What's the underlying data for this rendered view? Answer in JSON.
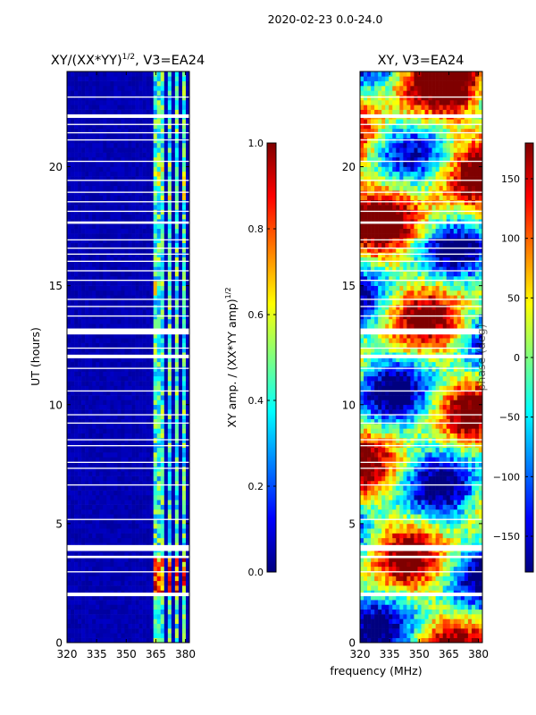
{
  "suptitle": "2020-02-23 0.0-24.0",
  "shared": {
    "xlabel": "frequency (MHz)"
  },
  "colors": {
    "jet": [
      "#00007f",
      "#0000ff",
      "#007fff",
      "#00ffff",
      "#7fff7f",
      "#ffff00",
      "#ff7f00",
      "#ff0000",
      "#7f0000"
    ],
    "gap": "#ffffff"
  },
  "chart_data": [
    {
      "type": "heatmap",
      "title_main": "XY/(XX*YY)",
      "title_exp": "1/2",
      "title_tail": ", V3=EA24",
      "xlabel": "",
      "ylabel": "UT (hours)",
      "xlim": [
        320,
        382
      ],
      "ylim": [
        0,
        24
      ],
      "xticks": [
        "320",
        "335",
        "350",
        "365",
        "380"
      ],
      "xtick_values": [
        320,
        335,
        350,
        365,
        380
      ],
      "yticks": [
        "0",
        "5",
        "10",
        "15",
        "20"
      ],
      "ytick_values": [
        0,
        5,
        10,
        15,
        20
      ],
      "colorbar": {
        "label_main": "XY amp. / (XX*YY amp)",
        "label_exp": "1/2",
        "range": [
          0,
          1
        ],
        "ticks": [
          "0.0",
          "0.2",
          "0.4",
          "0.6",
          "0.8",
          "1.0"
        ],
        "tick_values": [
          0,
          0.2,
          0.4,
          0.6,
          0.8,
          1.0
        ]
      }
    },
    {
      "type": "heatmap",
      "title_main": "XY, V3=EA24",
      "xlabel": "frequency (MHz)",
      "ylabel": "",
      "xlim": [
        320,
        382
      ],
      "ylim": [
        0,
        24
      ],
      "xticks": [
        "320",
        "335",
        "350",
        "365",
        "380"
      ],
      "xtick_values": [
        320,
        335,
        350,
        365,
        380
      ],
      "yticks": [
        "0",
        "5",
        "10",
        "15",
        "20"
      ],
      "ytick_values": [
        0,
        5,
        10,
        15,
        20
      ],
      "colorbar": {
        "label_main": "phase (deg)",
        "range": [
          -180,
          180
        ],
        "ticks": [
          "−150",
          "−100",
          "−50",
          "0",
          "50",
          "100",
          "150"
        ],
        "tick_values": [
          -150,
          -100,
          -50,
          0,
          50,
          100,
          150
        ]
      }
    }
  ],
  "gap_intervals_hours": [
    [
      1.95,
      2.1
    ],
    [
      2.95,
      3.0
    ],
    [
      3.55,
      3.65
    ],
    [
      3.85,
      4.1
    ],
    [
      5.15,
      5.2
    ],
    [
      6.6,
      6.65
    ],
    [
      7.3,
      7.35
    ],
    [
      7.55,
      7.6
    ],
    [
      8.25,
      8.3
    ],
    [
      8.5,
      8.55
    ],
    [
      9.2,
      9.25
    ],
    [
      9.55,
      9.6
    ],
    [
      10.55,
      10.6
    ],
    [
      11.5,
      11.55
    ],
    [
      11.95,
      12.1
    ],
    [
      12.35,
      12.4
    ],
    [
      12.95,
      13.2
    ],
    [
      13.7,
      13.75
    ],
    [
      14.1,
      14.15
    ],
    [
      14.4,
      14.45
    ],
    [
      15.2,
      15.25
    ],
    [
      15.6,
      15.65
    ],
    [
      16.0,
      16.05
    ],
    [
      16.3,
      16.35
    ],
    [
      16.55,
      16.6
    ],
    [
      16.9,
      16.95
    ],
    [
      17.6,
      17.7
    ],
    [
      18.1,
      18.15
    ],
    [
      18.5,
      18.55
    ],
    [
      18.9,
      18.95
    ],
    [
      19.4,
      19.45
    ],
    [
      20.2,
      20.25
    ],
    [
      21.1,
      21.15
    ],
    [
      21.4,
      21.45
    ],
    [
      21.75,
      21.8
    ],
    [
      22.05,
      22.2
    ],
    [
      22.9,
      22.95
    ]
  ],
  "amplitude_channel_bands_mhz": [
    [
      363,
      365.5
    ],
    [
      366.5,
      370
    ],
    [
      371,
      373
    ],
    [
      374,
      377
    ],
    [
      378,
      381
    ]
  ]
}
